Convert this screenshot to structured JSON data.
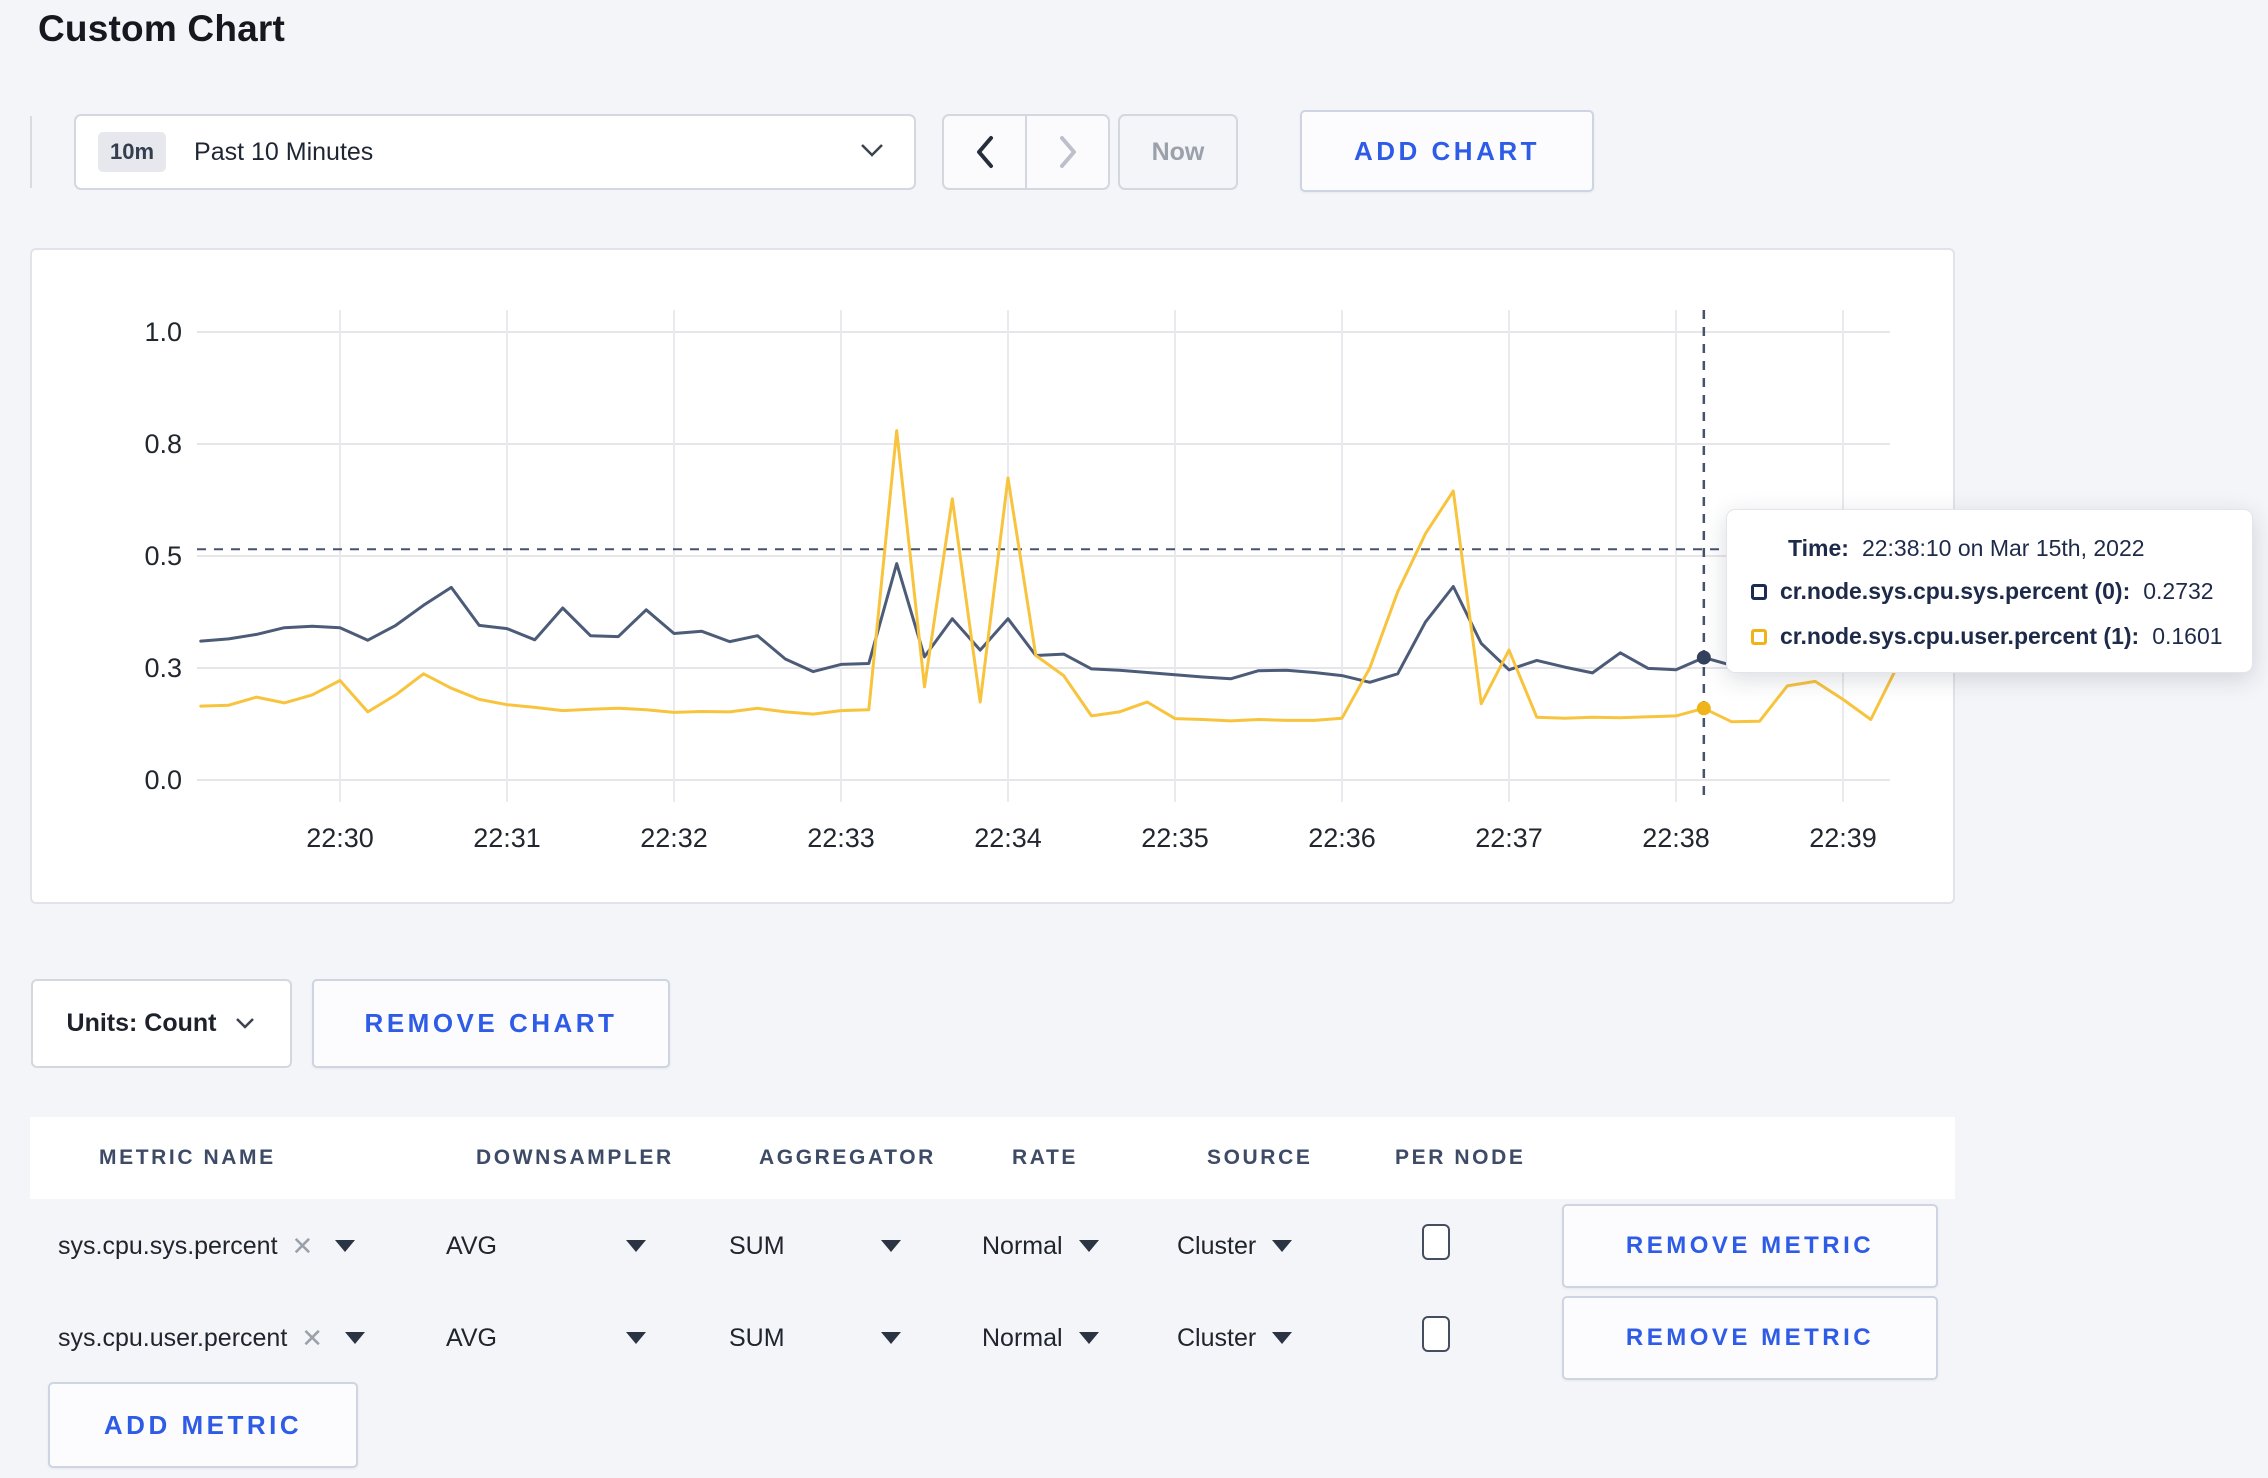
{
  "page": {
    "title": "Custom Chart"
  },
  "toolbar": {
    "time_range_badge": "10m",
    "time_range_label": "Past 10 Minutes",
    "prev_label": "previous time window",
    "next_label": "next time window",
    "now_label": "Now",
    "add_chart_label": "ADD CHART"
  },
  "chart_data": {
    "type": "line",
    "title": "",
    "xlabel": "",
    "ylabel": "",
    "ylim": [
      0,
      1
    ],
    "grid": true,
    "y_ticks": [
      {
        "label": "1.0",
        "v": 1.0
      },
      {
        "label": "0.8",
        "v": 0.75
      },
      {
        "label": "0.5",
        "v": 0.5
      },
      {
        "label": "0.3",
        "v": 0.25
      },
      {
        "label": "0.0",
        "v": 0.0
      }
    ],
    "x_ticks": [
      "22:30",
      "22:31",
      "22:32",
      "22:33",
      "22:34",
      "22:35",
      "22:36",
      "22:37",
      "22:38",
      "22:39"
    ],
    "series": [
      {
        "name": "cr.node.sys.cpu.sys.percent",
        "color": "#4c5b77",
        "points": [
          [
            "22:29:10",
            0.31
          ],
          [
            "22:29:20",
            0.315
          ],
          [
            "22:29:30",
            0.325
          ],
          [
            "22:29:40",
            0.34
          ],
          [
            "22:29:50",
            0.343
          ],
          [
            "22:30:00",
            0.34
          ],
          [
            "22:30:10",
            0.312
          ],
          [
            "22:30:20",
            0.345
          ],
          [
            "22:30:30",
            0.39
          ],
          [
            "22:30:40",
            0.43
          ],
          [
            "22:30:50",
            0.345
          ],
          [
            "22:31:00",
            0.338
          ],
          [
            "22:31:10",
            0.313
          ],
          [
            "22:31:20",
            0.384
          ],
          [
            "22:31:30",
            0.322
          ],
          [
            "22:31:40",
            0.32
          ],
          [
            "22:31:50",
            0.38
          ],
          [
            "22:32:00",
            0.327
          ],
          [
            "22:32:10",
            0.332
          ],
          [
            "22:32:20",
            0.309
          ],
          [
            "22:32:30",
            0.322
          ],
          [
            "22:32:40",
            0.27
          ],
          [
            "22:32:50",
            0.242
          ],
          [
            "22:33:00",
            0.258
          ],
          [
            "22:33:10",
            0.26
          ],
          [
            "22:33:20",
            0.483
          ],
          [
            "22:33:30",
            0.275
          ],
          [
            "22:33:40",
            0.36
          ],
          [
            "22:33:50",
            0.29
          ],
          [
            "22:34:00",
            0.36
          ],
          [
            "22:34:10",
            0.278
          ],
          [
            "22:34:20",
            0.281
          ],
          [
            "22:34:30",
            0.248
          ],
          [
            "22:34:40",
            0.245
          ],
          [
            "22:34:50",
            0.24
          ],
          [
            "22:35:00",
            0.235
          ],
          [
            "22:35:10",
            0.23
          ],
          [
            "22:35:20",
            0.226
          ],
          [
            "22:35:30",
            0.244
          ],
          [
            "22:35:40",
            0.245
          ],
          [
            "22:35:50",
            0.24
          ],
          [
            "22:36:00",
            0.233
          ],
          [
            "22:36:10",
            0.218
          ],
          [
            "22:36:20",
            0.237
          ],
          [
            "22:36:30",
            0.353
          ],
          [
            "22:36:40",
            0.432
          ],
          [
            "22:36:50",
            0.305
          ],
          [
            "22:37:00",
            0.246
          ],
          [
            "22:37:10",
            0.267
          ],
          [
            "22:37:20",
            0.252
          ],
          [
            "22:37:30",
            0.239
          ],
          [
            "22:37:40",
            0.284
          ],
          [
            "22:37:50",
            0.249
          ],
          [
            "22:38:00",
            0.246
          ],
          [
            "22:38:10",
            0.2732
          ],
          [
            "22:38:20",
            0.256
          ],
          [
            "22:38:30",
            0.262
          ],
          [
            "22:38:40",
            0.272
          ],
          [
            "22:38:50",
            0.258
          ],
          [
            "22:39:00",
            0.252
          ],
          [
            "22:39:10",
            0.262
          ],
          [
            "22:39:20",
            0.255
          ]
        ]
      },
      {
        "name": "cr.node.sys.cpu.user.percent",
        "color": "#f8c43e",
        "points": [
          [
            "22:29:10",
            0.165
          ],
          [
            "22:29:20",
            0.167
          ],
          [
            "22:29:30",
            0.185
          ],
          [
            "22:29:40",
            0.172
          ],
          [
            "22:29:50",
            0.19
          ],
          [
            "22:30:00",
            0.222
          ],
          [
            "22:30:10",
            0.152
          ],
          [
            "22:30:20",
            0.19
          ],
          [
            "22:30:30",
            0.237
          ],
          [
            "22:30:40",
            0.205
          ],
          [
            "22:30:50",
            0.18
          ],
          [
            "22:31:00",
            0.168
          ],
          [
            "22:31:10",
            0.162
          ],
          [
            "22:31:20",
            0.155
          ],
          [
            "22:31:30",
            0.158
          ],
          [
            "22:31:40",
            0.16
          ],
          [
            "22:31:50",
            0.157
          ],
          [
            "22:32:00",
            0.151
          ],
          [
            "22:32:10",
            0.153
          ],
          [
            "22:32:20",
            0.152
          ],
          [
            "22:32:30",
            0.16
          ],
          [
            "22:32:40",
            0.152
          ],
          [
            "22:32:50",
            0.147
          ],
          [
            "22:33:00",
            0.155
          ],
          [
            "22:33:10",
            0.157
          ],
          [
            "22:33:20",
            0.78
          ],
          [
            "22:33:30",
            0.208
          ],
          [
            "22:33:40",
            0.628
          ],
          [
            "22:33:50",
            0.174
          ],
          [
            "22:34:00",
            0.674
          ],
          [
            "22:34:10",
            0.278
          ],
          [
            "22:34:20",
            0.233
          ],
          [
            "22:34:30",
            0.143
          ],
          [
            "22:34:40",
            0.152
          ],
          [
            "22:34:50",
            0.174
          ],
          [
            "22:35:00",
            0.137
          ],
          [
            "22:35:10",
            0.135
          ],
          [
            "22:35:20",
            0.132
          ],
          [
            "22:35:30",
            0.135
          ],
          [
            "22:35:40",
            0.133
          ],
          [
            "22:35:50",
            0.133
          ],
          [
            "22:36:00",
            0.138
          ],
          [
            "22:36:10",
            0.25
          ],
          [
            "22:36:20",
            0.42
          ],
          [
            "22:36:30",
            0.55
          ],
          [
            "22:36:40",
            0.645
          ],
          [
            "22:36:50",
            0.17
          ],
          [
            "22:37:00",
            0.29
          ],
          [
            "22:37:10",
            0.14
          ],
          [
            "22:37:20",
            0.138
          ],
          [
            "22:37:30",
            0.14
          ],
          [
            "22:37:40",
            0.139
          ],
          [
            "22:37:50",
            0.141
          ],
          [
            "22:38:00",
            0.143
          ],
          [
            "22:38:10",
            0.1601
          ],
          [
            "22:38:20",
            0.13
          ],
          [
            "22:38:30",
            0.131
          ],
          [
            "22:38:40",
            0.21
          ],
          [
            "22:38:50",
            0.22
          ],
          [
            "22:39:00",
            0.18
          ],
          [
            "22:39:10",
            0.135
          ],
          [
            "22:39:20",
            0.26
          ]
        ]
      }
    ],
    "legend_position": "tooltip",
    "crosshair": {
      "time": "22:38:10",
      "value_line": 0.515,
      "color": "#45536b"
    },
    "hover_dots": [
      {
        "series": 0,
        "value": 0.2732,
        "color": "#33415c"
      },
      {
        "series": 1,
        "value": 0.1601,
        "color": "#f0b41b"
      }
    ]
  },
  "tooltip": {
    "time_label": "Time:",
    "time_value": "22:38:10 on Mar 15th, 2022",
    "entries": [
      {
        "label": "cr.node.sys.cpu.sys.percent (0):",
        "value": "0.2732",
        "color": "#1b2b52"
      },
      {
        "label": "cr.node.sys.cpu.user.percent (1):",
        "value": "0.1601",
        "color": "#f0b41b"
      }
    ]
  },
  "chart_controls": {
    "units_label": "Units: Count",
    "remove_chart_label": "REMOVE CHART"
  },
  "metrics_table": {
    "headers": [
      "METRIC NAME",
      "DOWNSAMPLER",
      "AGGREGATOR",
      "RATE",
      "SOURCE",
      "PER NODE"
    ],
    "rows": [
      {
        "metric": "sys.cpu.sys.percent",
        "downsampler": "AVG",
        "aggregator": "SUM",
        "rate": "Normal",
        "source": "Cluster",
        "per_node": false,
        "remove_label": "REMOVE METRIC"
      },
      {
        "metric": "sys.cpu.user.percent",
        "downsampler": "AVG",
        "aggregator": "SUM",
        "rate": "Normal",
        "source": "Cluster",
        "per_node": false,
        "remove_label": "REMOVE METRIC"
      }
    ],
    "add_metric_label": "ADD METRIC"
  },
  "colors": {
    "accent_blue": "#2e5ce6",
    "grid": "#e6e6ea",
    "page_bg": "#f4f5f8"
  }
}
